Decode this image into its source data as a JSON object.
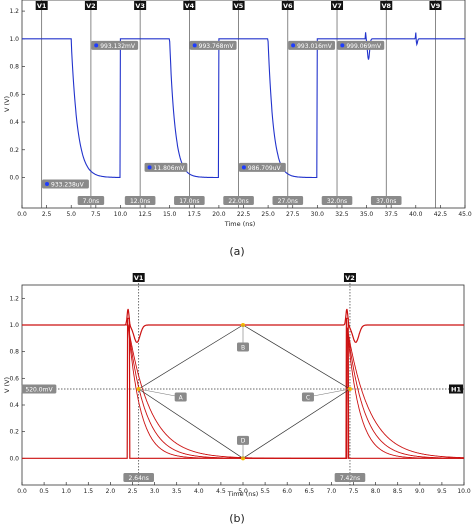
{
  "chart_data": [
    {
      "type": "line",
      "panel_label": "(a)",
      "xlabel": "Time (ns)",
      "ylabel": "V (V)",
      "xlim": [
        0,
        45
      ],
      "ylim": [
        -0.22,
        1.28
      ],
      "xticks": [
        0.0,
        2.5,
        5.0,
        7.5,
        10.0,
        12.5,
        15.0,
        17.5,
        20.0,
        22.5,
        25.0,
        27.5,
        30.0,
        32.5,
        35.0,
        37.5,
        40.0,
        42.5,
        45.0
      ],
      "xtick_labels": [
        "0.0",
        "2.5",
        "5.0",
        "7.5",
        "10.0",
        "12.5",
        "15.0",
        "17.5",
        "20.0",
        "22.5",
        "25.0",
        "27.5",
        "30.0",
        "32.5",
        "35.0",
        "37.5",
        "40.0",
        "42.5",
        "45.0"
      ],
      "yticks": [
        0.0,
        0.2,
        0.4,
        0.6,
        0.8,
        1.0,
        1.2
      ],
      "ytick_labels": [
        "0.0",
        "0.2",
        "0.4",
        "0.6",
        "0.8",
        "1.0",
        "1.2"
      ],
      "grid": false,
      "series_color": "#2233cc",
      "cursors": [
        {
          "name": "V1",
          "x": 2.0
        },
        {
          "name": "V2",
          "x": 7.0
        },
        {
          "name": "V3",
          "x": 12.0
        },
        {
          "name": "V4",
          "x": 17.0
        },
        {
          "name": "V5",
          "x": 22.0
        },
        {
          "name": "V6",
          "x": 27.0
        },
        {
          "name": "V7",
          "x": 32.0
        },
        {
          "name": "V8",
          "x": 37.0
        },
        {
          "name": "V9",
          "x": 42.0
        }
      ],
      "cursor_time_labels": [
        {
          "text": "7.0ns",
          "x": 7.0
        },
        {
          "text": "12.0ns",
          "x": 12.0
        },
        {
          "text": "17.0ns",
          "x": 17.0
        },
        {
          "text": "22.0ns",
          "x": 22.0
        },
        {
          "text": "27.0ns",
          "x": 27.0
        },
        {
          "text": "32.0ns",
          "x": 32.0
        },
        {
          "text": "37.0ns",
          "x": 37.0
        }
      ],
      "annotations": [
        {
          "text": "933.238uV",
          "x": 7.0,
          "y": 0.0
        },
        {
          "text": "993.132mV",
          "x": 12.0,
          "y": 1.0
        },
        {
          "text": "11.806mV",
          "x": 17.0,
          "y": 0.12
        },
        {
          "text": "993.768mV",
          "x": 22.0,
          "y": 1.0
        },
        {
          "text": "986.709uV",
          "x": 27.0,
          "y": 0.12
        },
        {
          "text": "993.016mV",
          "x": 32.0,
          "y": 1.0
        },
        {
          "text": "999.069mV",
          "x": 37.0,
          "y": 1.0
        }
      ]
    },
    {
      "type": "line",
      "panel_label": "(b)",
      "xlabel": "Time (ns)",
      "ylabel": "V (V)",
      "xlim": [
        0,
        10
      ],
      "ylim": [
        -0.2,
        1.3
      ],
      "xticks": [
        0,
        0.5,
        1,
        1.5,
        2,
        2.5,
        3,
        3.5,
        4,
        4.5,
        5,
        5.5,
        6,
        6.5,
        7,
        7.5,
        8,
        8.5,
        9,
        9.5,
        10
      ],
      "xtick_labels": [
        "0.0",
        "0.5",
        "1.0",
        "1.5",
        "2.0",
        "2.5",
        "3.0",
        "3.5",
        "4.0",
        "4.5",
        "5.0",
        "5.5",
        "6.0",
        "6.5",
        "7.0",
        "7.5",
        "8.0",
        "8.5",
        "9.0",
        "9.5",
        "10.0"
      ],
      "yticks": [
        0.0,
        0.2,
        0.4,
        0.6,
        0.8,
        1.0,
        1.2
      ],
      "ytick_labels": [
        "0.0",
        "0.2",
        "0.4",
        "0.6",
        "0.8",
        "1.0",
        "1.2"
      ],
      "grid": false,
      "series_color": "#cc1111",
      "cursors": [
        {
          "name": "V1",
          "x": 2.64
        },
        {
          "name": "V2",
          "x": 7.42
        }
      ],
      "cursor_time_labels": [
        {
          "text": "2.64ns",
          "x": 2.64
        },
        {
          "text": "7.42ns",
          "x": 7.42
        }
      ],
      "horizontal_cursor": {
        "name": "H1",
        "y": 0.52,
        "label": "520.0mV"
      },
      "eye_points": [
        {
          "name": "A",
          "x": 2.64,
          "y": 0.52
        },
        {
          "name": "B",
          "x": 5.0,
          "y": 1.0
        },
        {
          "name": "C",
          "x": 7.42,
          "y": 0.52
        },
        {
          "name": "D",
          "x": 5.0,
          "y": 0.0
        }
      ]
    }
  ]
}
